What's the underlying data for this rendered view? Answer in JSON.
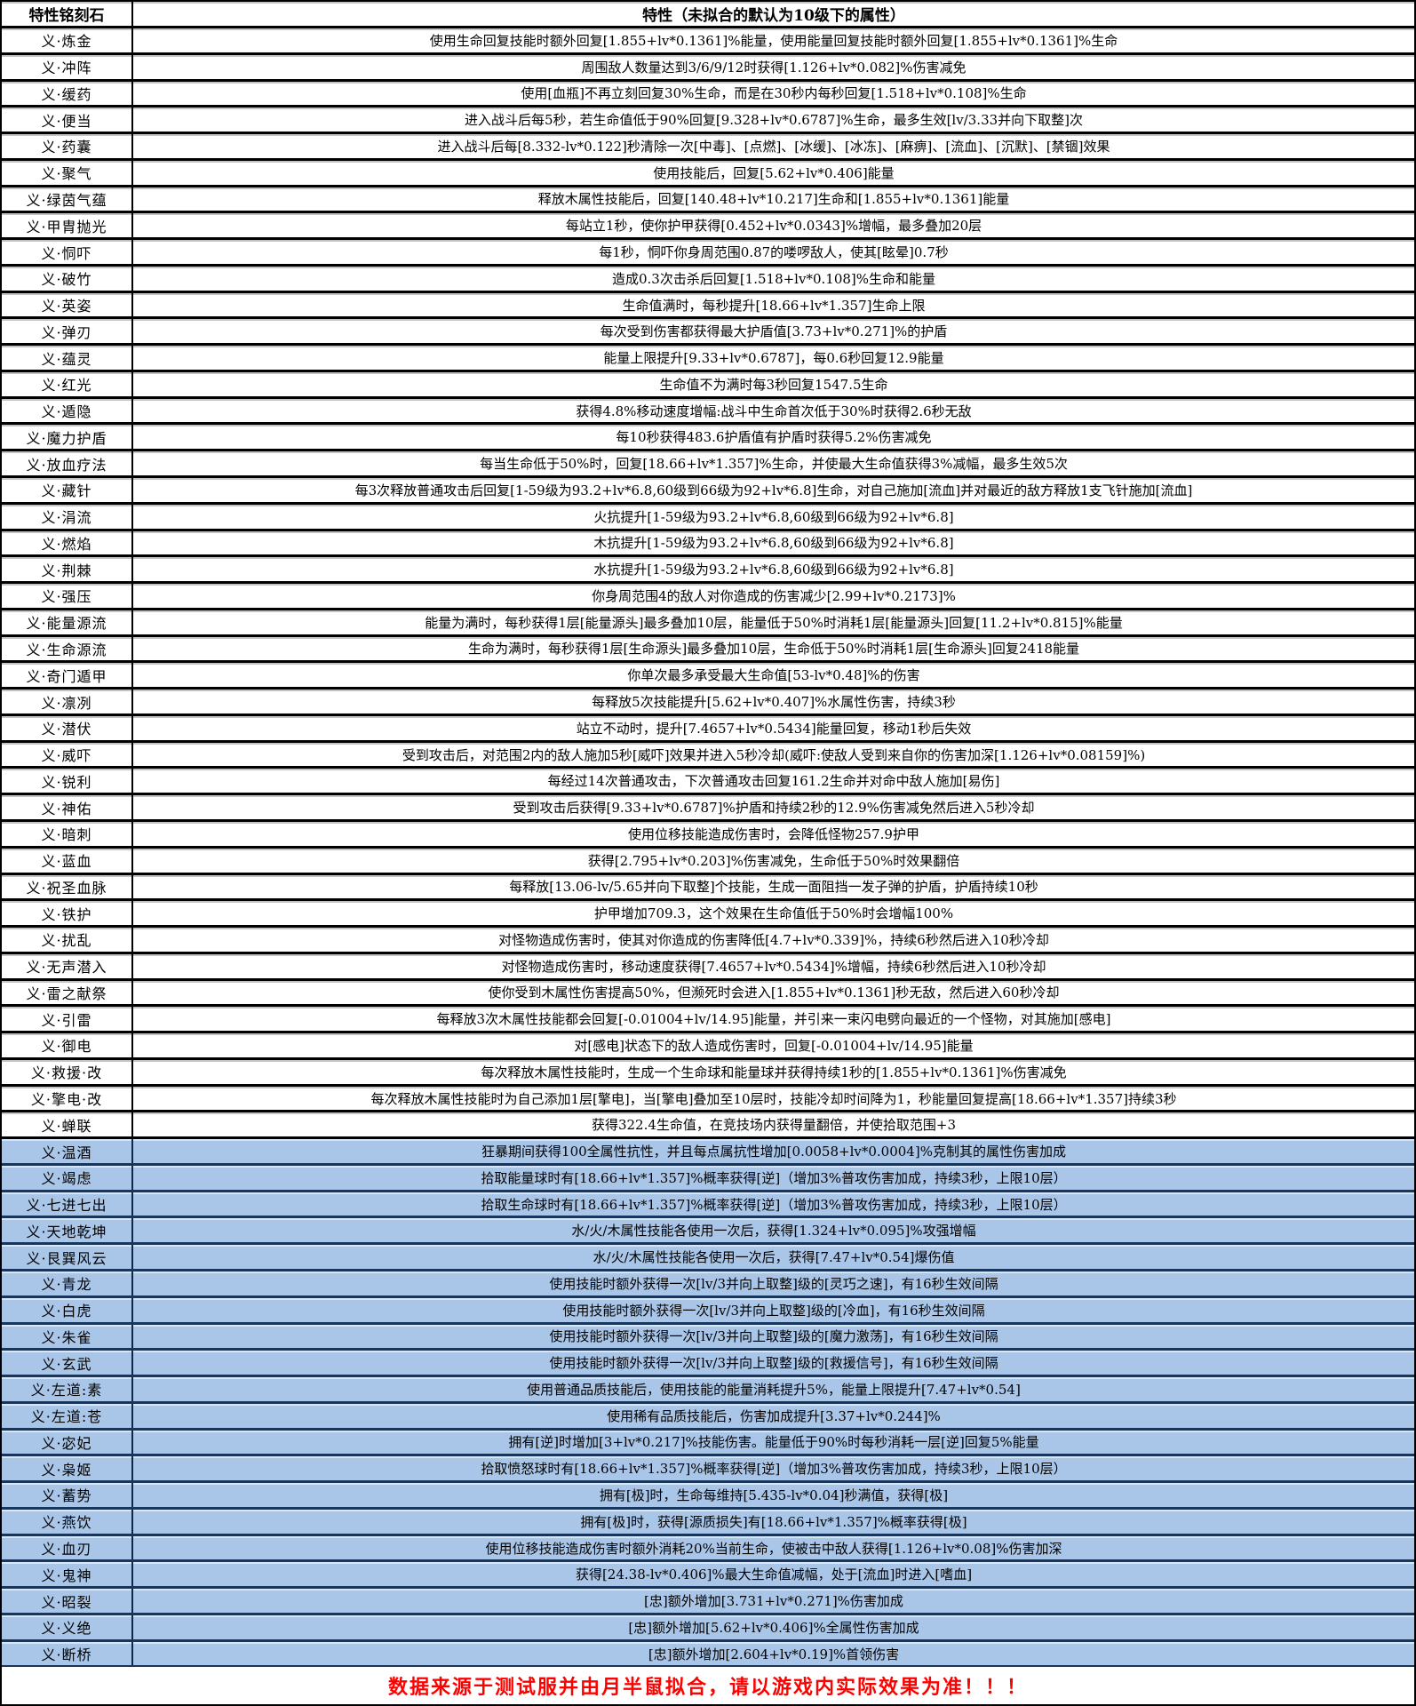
{
  "header": {
    "col1": "特性铭刻石",
    "col2": "特性（未拟合的默认为10级下的属性）"
  },
  "footer": {
    "note": "数据来源于测试服并由月半鼠拟合，请以游戏内实际效果为准！！！"
  },
  "colors": {
    "highlight_row_bg": "#A9C6E8",
    "highlight_row_border": "#17365D",
    "row_border": "#000000",
    "footer_text": "#FF0000"
  },
  "rows": [
    {
      "name": "义·炼金",
      "desc": "使用生命回复技能时额外回复[1.855+lv*0.1361]%能量，使用能量回复技能时额外回复[1.855+lv*0.1361]%生命",
      "highlighted": false
    },
    {
      "name": "义·冲阵",
      "desc": "周围敌人数量达到3/6/9/12时获得[1.126+lv*0.082]%伤害减免",
      "highlighted": false
    },
    {
      "name": "义·缓药",
      "desc": "使用[血瓶]不再立刻回复30%生命，而是在30秒内每秒回复[1.518+lv*0.108]%生命",
      "highlighted": false
    },
    {
      "name": "义·便当",
      "desc": "进入战斗后每5秒，若生命值低于90%回复[9.328+lv*0.6787]%生命，最多生效[lv/3.33并向下取整]次",
      "highlighted": false
    },
    {
      "name": "义·药囊",
      "desc": "进入战斗后每[8.332-lv*0.122]秒清除一次[中毒]、[点燃]、[冰缓]、[冰冻]、[麻痹]、[流血]、[沉默]、[禁锢]效果",
      "highlighted": false
    },
    {
      "name": "义·聚气",
      "desc": "使用技能后，回复[5.62+lv*0.406]能量",
      "highlighted": false
    },
    {
      "name": "义·绿茵气蕴",
      "desc": "释放木属性技能后，回复[140.48+lv*10.217]生命和[1.855+lv*0.1361]能量",
      "highlighted": false
    },
    {
      "name": "义·甲胄抛光",
      "desc": "每站立1秒，使你护甲获得[0.452+lv*0.0343]%增幅，最多叠加20层",
      "highlighted": false
    },
    {
      "name": "义·恫吓",
      "desc": "每1秒，恫吓你身周范围0.87的喽啰敌人，使其[眩晕]0.7秒",
      "highlighted": false
    },
    {
      "name": "义·破竹",
      "desc": "造成0.3次击杀后回复[1.518+lv*0.108]%生命和能量",
      "highlighted": false
    },
    {
      "name": "义·英姿",
      "desc": "生命值满时，每秒提升[18.66+lv*1.357]生命上限",
      "highlighted": false
    },
    {
      "name": "义·弹刃",
      "desc": "每次受到伤害都获得最大护盾值[3.73+lv*0.271]%的护盾",
      "highlighted": false
    },
    {
      "name": "义·蕴灵",
      "desc": "能量上限提升[9.33+lv*0.6787]，每0.6秒回复12.9能量",
      "highlighted": false
    },
    {
      "name": "义·红光",
      "desc": "生命值不为满时每3秒回复1547.5生命",
      "highlighted": false
    },
    {
      "name": "义·遁隐",
      "desc": "获得4.8%移动速度增幅:战斗中生命首次低于30%时获得2.6秒无敌",
      "highlighted": false
    },
    {
      "name": "义·魔力护盾",
      "desc": "每10秒获得483.6护盾值有护盾时获得5.2%伤害减免",
      "highlighted": false
    },
    {
      "name": "义·放血疗法",
      "desc": "每当生命低于50%时，回复[18.66+lv*1.357]%生命，并使最大生命值获得3%减幅，最多生效5次",
      "highlighted": false
    },
    {
      "name": "义·藏针",
      "desc": "每3次释放普通攻击后回复[1-59级为93.2+lv*6.8,60级到66级为92+lv*6.8]生命，对自己施加[流血]并对最近的敌方释放1支飞针施加[流血]",
      "highlighted": false
    },
    {
      "name": "义·涓流",
      "desc": "火抗提升[1-59级为93.2+lv*6.8,60级到66级为92+lv*6.8]",
      "highlighted": false
    },
    {
      "name": "义·燃焰",
      "desc": "木抗提升[1-59级为93.2+lv*6.8,60级到66级为92+lv*6.8]",
      "highlighted": false
    },
    {
      "name": "义·荆棘",
      "desc": "水抗提升[1-59级为93.2+lv*6.8,60级到66级为92+lv*6.8]",
      "highlighted": false
    },
    {
      "name": "义·强压",
      "desc": "你身周范围4的敌人对你造成的伤害减少[2.99+lv*0.2173]%",
      "highlighted": false
    },
    {
      "name": "义·能量源流",
      "desc": "能量为满时，每秒获得1层[能量源头]最多叠加10层，能量低于50%时消耗1层[能量源头]回复[11.2+lv*0.815]%能量",
      "highlighted": false
    },
    {
      "name": "义·生命源流",
      "desc": "生命为满时，每秒获得1层[生命源头]最多叠加10层，生命低于50%时消耗1层[生命源头]回复2418能量",
      "highlighted": false
    },
    {
      "name": "义·奇门遁甲",
      "desc": "你单次最多承受最大生命值[53-lv*0.48]%的伤害",
      "highlighted": false
    },
    {
      "name": "义·凛冽",
      "desc": "每释放5次技能提升[5.62+lv*0.407]%水属性伤害，持续3秒",
      "highlighted": false
    },
    {
      "name": "义·潜伏",
      "desc": "站立不动时，提升[7.4657+lv*0.5434]能量回复，移动1秒后失效",
      "highlighted": false
    },
    {
      "name": "义·威吓",
      "desc": "受到攻击后，对范围2内的敌人施加5秒[威吓]效果并进入5秒冷却(威吓:使敌人受到来自你的伤害加深[1.126+lv*0.08159]%)",
      "highlighted": false
    },
    {
      "name": "义·锐利",
      "desc": "每经过14次普通攻击，下次普通攻击回复161.2生命并对命中敌人施加[易伤]",
      "highlighted": false
    },
    {
      "name": "义·神佑",
      "desc": "受到攻击后获得[9.33+lv*0.6787]%护盾和持续2秒的12.9%伤害减免然后进入5秒冷却",
      "highlighted": false
    },
    {
      "name": "义·暗刺",
      "desc": "使用位移技能造成伤害时，会降低怪物257.9护甲",
      "highlighted": false
    },
    {
      "name": "义·蓝血",
      "desc": "获得[2.795+lv*0.203]%伤害减免，生命低于50%时效果翻倍",
      "highlighted": false
    },
    {
      "name": "义·祝圣血脉",
      "desc": "每释放[13.06-lv/5.65并向下取整]个技能，生成一面阻挡一发子弹的护盾，护盾持续10秒",
      "highlighted": false
    },
    {
      "name": "义·铁护",
      "desc": "护甲增加709.3，这个效果在生命值低于50%时会增幅100%",
      "highlighted": false
    },
    {
      "name": "义·扰乱",
      "desc": "对怪物造成伤害时，使其对你造成的伤害降低[4.7+lv*0.339]%，持续6秒然后进入10秒冷却",
      "highlighted": false
    },
    {
      "name": "义·无声潜入",
      "desc": "对怪物造成伤害时，移动速度获得[7.4657+lv*0.5434]%增幅，持续6秒然后进入10秒冷却",
      "highlighted": false
    },
    {
      "name": "义·雷之献祭",
      "desc": "使你受到木属性伤害提高50%，但濒死时会进入[1.855+lv*0.1361]秒无敌，然后进入60秒冷却",
      "highlighted": false
    },
    {
      "name": "义·引雷",
      "desc": "每释放3次木属性技能都会回复[-0.01004+lv/14.95]能量，并引来一束闪电劈向最近的一个怪物，对其施加[感电]",
      "highlighted": false
    },
    {
      "name": "义·御电",
      "desc": "对[感电]状态下的敌人造成伤害时，回复[-0.01004+lv/14.95]能量",
      "highlighted": false
    },
    {
      "name": "义·救援·改",
      "desc": "每次释放木属性技能时，生成一个生命球和能量球并获得持续1秒的[1.855+lv*0.1361]%伤害减免",
      "highlighted": false
    },
    {
      "name": "义·擎电·改",
      "desc": "每次释放木属性技能时为自己添加1层[擎电]，当[擎电]叠加至10层时，技能冷却时间降为1，秒能量回复提高[18.66+lv*1.357]持续3秒",
      "highlighted": false
    },
    {
      "name": "义·蝉联",
      "desc": "获得322.4生命值，在竞技场内获得量翻倍，并使拾取范围+3",
      "highlighted": false
    },
    {
      "name": "义·温酒",
      "desc": "狂暴期间获得100全属性抗性，并且每点属抗性增加[0.0058+lv*0.0004]%克制其的属性伤害加成",
      "highlighted": true
    },
    {
      "name": "义·竭虑",
      "desc": "拾取能量球时有[18.66+lv*1.357]%概率获得[逆]（增加3%普攻伤害加成，持续3秒，上限10层）",
      "highlighted": true
    },
    {
      "name": "义·七进七出",
      "desc": "拾取生命球时有[18.66+lv*1.357]%概率获得[逆]（增加3%普攻伤害加成，持续3秒，上限10层）",
      "highlighted": true
    },
    {
      "name": "义·天地乾坤",
      "desc": "水/火/木属性技能各使用一次后，获得[1.324+lv*0.095]%攻强增幅",
      "highlighted": true
    },
    {
      "name": "义·艮巽风云",
      "desc": "水/火/木属性技能各使用一次后，获得[7.47+lv*0.54]爆伤值",
      "highlighted": true
    },
    {
      "name": "义·青龙",
      "desc": "使用技能时额外获得一次[lv/3并向上取整]级的[灵巧之速]，有16秒生效间隔",
      "highlighted": true
    },
    {
      "name": "义·白虎",
      "desc": "使用技能时额外获得一次[lv/3并向上取整]级的[冷血]，有16秒生效间隔",
      "highlighted": true
    },
    {
      "name": "义·朱雀",
      "desc": "使用技能时额外获得一次[lv/3并向上取整]级的[魔力激荡]，有16秒生效间隔",
      "highlighted": true
    },
    {
      "name": "义·玄武",
      "desc": "使用技能时额外获得一次[lv/3并向上取整]级的[救援信号]，有16秒生效间隔",
      "highlighted": true
    },
    {
      "name": "义·左道:素",
      "desc": "使用普通品质技能后，使用技能的能量消耗提升5%，能量上限提升[7.47+lv*0.54]",
      "highlighted": true
    },
    {
      "name": "义·左道:苍",
      "desc": "使用稀有品质技能后，伤害加成提升[3.37+lv*0.244]%",
      "highlighted": true
    },
    {
      "name": "义·宓妃",
      "desc": "拥有[逆]时增加[3+lv*0.217]%技能伤害。能量低于90%时每秒消耗一层[逆]回复5%能量",
      "highlighted": true
    },
    {
      "name": "义·枭姬",
      "desc": "拾取愤怒球时有[18.66+lv*1.357]%概率获得[逆]（增加3%普攻伤害加成，持续3秒，上限10层）",
      "highlighted": true
    },
    {
      "name": "义·蓄势",
      "desc": "拥有[极]时，生命每维持[5.435-lv*0.04]秒满值，获得[极]",
      "highlighted": true
    },
    {
      "name": "义·燕饮",
      "desc": "拥有[极]时，获得[源质损失]有[18.66+lv*1.357]%概率获得[极]",
      "highlighted": true
    },
    {
      "name": "义·血刃",
      "desc": "使用位移技能造成伤害时额外消耗20%当前生命，使被击中敌人获得[1.126+lv*0.08]%伤害加深",
      "highlighted": true
    },
    {
      "name": "义·鬼神",
      "desc": "获得[24.38-lv*0.406]%最大生命值减幅，处于[流血]时进入[嗜血]",
      "highlighted": true
    },
    {
      "name": "义·昭裂",
      "desc": "[忠]额外增加[3.731+lv*0.271]%伤害加成",
      "highlighted": true
    },
    {
      "name": "义·义绝",
      "desc": "[忠]额外增加[5.62+lv*0.406]%全属性伤害加成",
      "highlighted": true
    },
    {
      "name": "义·断桥",
      "desc": "[忠]额外增加[2.604+lv*0.19]%首领伤害",
      "highlighted": true
    }
  ]
}
